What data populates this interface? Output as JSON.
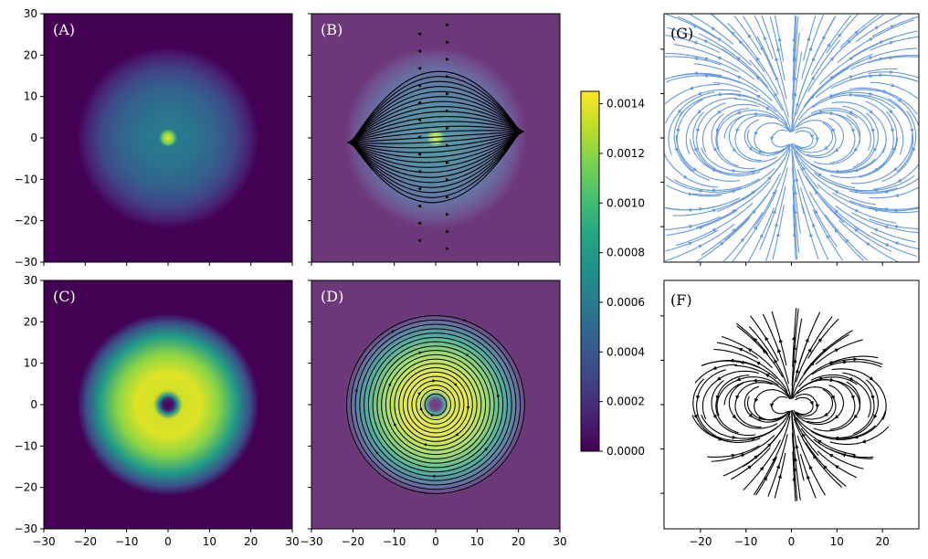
{
  "chart_data": [
    {
      "id": "A",
      "label": "(A)",
      "type": "heatmap",
      "pattern": "gaussian_with_central_peak",
      "xlim": [
        -30,
        30
      ],
      "ylim": [
        -30,
        30
      ],
      "xticks": [],
      "yticks": [
        -30,
        -20,
        -10,
        0,
        10,
        20,
        30
      ],
      "disk_radius": 22,
      "peak_center": [
        0,
        0
      ],
      "colormap": "viridis",
      "vmin": 0,
      "vmax": 0.00145,
      "streamlines": false
    },
    {
      "id": "B",
      "label": "(B)",
      "type": "heatmap",
      "pattern": "gaussian_with_central_peak",
      "xlim": [
        -30,
        30
      ],
      "ylim": [
        -30,
        30
      ],
      "xticks": [],
      "yticks": [],
      "disk_radius": 22,
      "peak_center": [
        0,
        0
      ],
      "colormap": "viridis",
      "vmin": 0,
      "vmax": 0.00145,
      "overlay": "translucent",
      "streamlines": true,
      "stream_color": "#000000",
      "stream_kind": "flow_field_across_disk"
    },
    {
      "id": "C",
      "label": "(C)",
      "type": "heatmap",
      "pattern": "ring_with_central_hole",
      "xlim": [
        -30,
        30
      ],
      "ylim": [
        -30,
        30
      ],
      "xticks": [
        -30,
        -20,
        -10,
        0,
        10,
        20,
        30
      ],
      "yticks": [
        -30,
        -20,
        -10,
        0,
        10,
        20,
        30
      ],
      "disk_radius": 22,
      "hole_radius": 2.5,
      "colormap": "viridis",
      "vmin": 0,
      "vmax": 0.00145,
      "streamlines": false
    },
    {
      "id": "D",
      "label": "(D)",
      "type": "heatmap",
      "pattern": "ring_with_central_hole",
      "xlim": [
        -30,
        30
      ],
      "ylim": [
        -30,
        30
      ],
      "xticks": [
        -30,
        -20,
        -10,
        0,
        10,
        20,
        30
      ],
      "yticks": [],
      "disk_radius": 22,
      "hole_radius": 2.5,
      "colormap": "viridis",
      "vmin": 0,
      "vmax": 0.00145,
      "overlay": "translucent",
      "streamlines": true,
      "stream_color": "#000000",
      "stream_kind": "concentric_circles"
    },
    {
      "id": "G",
      "label": "(G)",
      "type": "streamplot",
      "field": "dipole",
      "xlim": [
        -28,
        28
      ],
      "ylim": [
        -28,
        28
      ],
      "xticks": [],
      "yticks": [],
      "stream_color": "#6699dd",
      "masked_outside_radius": false
    },
    {
      "id": "F",
      "label": "(F)",
      "type": "streamplot",
      "field": "dipole",
      "xlim": [
        -28,
        28
      ],
      "ylim": [
        -28,
        28
      ],
      "xticks": [
        -20,
        -10,
        0,
        10,
        20
      ],
      "yticks": [],
      "stream_color": "#000000",
      "masked_outside_radius": true,
      "mask_radius": 22
    }
  ],
  "colorbar": {
    "colormap": "viridis",
    "vmin": 0.0,
    "vmax": 0.00145,
    "ticks": [
      "0.0000",
      "0.0002",
      "0.0004",
      "0.0006",
      "0.0008",
      "0.0010",
      "0.0012",
      "0.0014"
    ],
    "tick_values": [
      0,
      0.0002,
      0.0004,
      0.0006,
      0.0008,
      0.001,
      0.0012,
      0.0014
    ]
  },
  "tick_labels": {
    "pm30": [
      "−30",
      "−20",
      "−10",
      "0",
      "10",
      "20",
      "30"
    ],
    "pm20": [
      "−20",
      "−10",
      "0",
      "10",
      "20"
    ]
  },
  "colors": {
    "panel_label_light": "#ffffff",
    "panel_label_dark": "#000000",
    "background_min": "#440154"
  }
}
